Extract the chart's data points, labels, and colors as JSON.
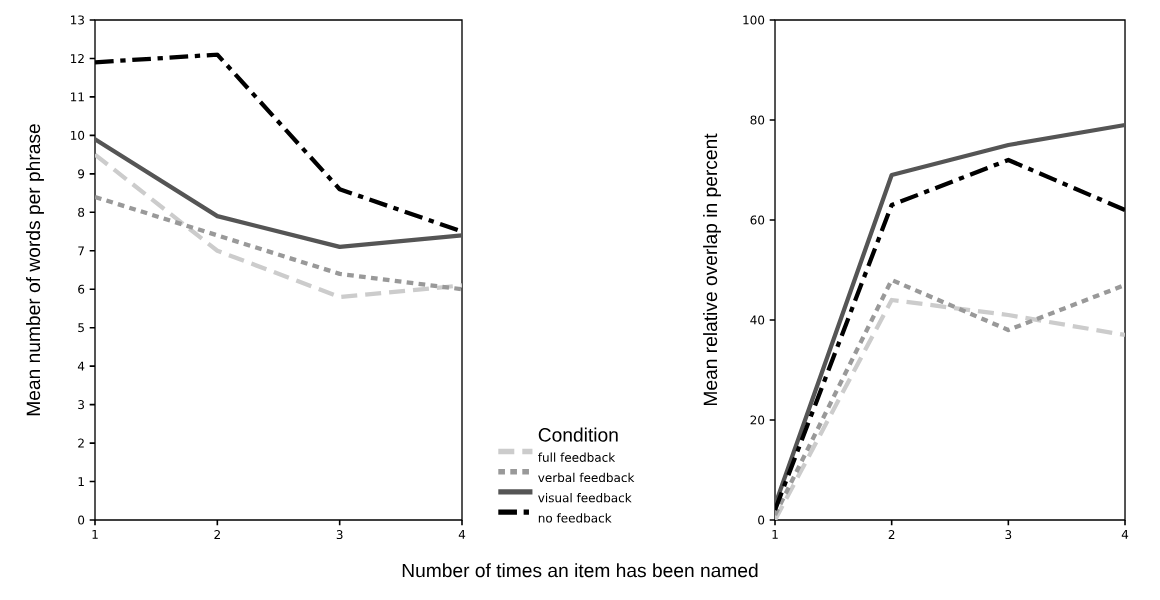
{
  "chart_data": [
    {
      "type": "line",
      "xlabel": "Number of times an item has been named",
      "ylabel": "Mean number of words per phrase",
      "legend_title": "Condition",
      "legend": "right",
      "grid": false,
      "x": [
        1,
        2,
        3,
        4
      ],
      "xlim": [
        1,
        4
      ],
      "xticks": [
        1,
        2,
        3,
        4
      ],
      "ylim": [
        0,
        13
      ],
      "yticks": [
        0,
        1,
        2,
        3,
        4,
        5,
        6,
        7,
        8,
        9,
        10,
        11,
        12,
        13
      ],
      "series": [
        {
          "name": "full feedback",
          "color": "#cccccc",
          "line_style": "dashed",
          "values": [
            9.5,
            7.0,
            5.8,
            6.1
          ]
        },
        {
          "name": "verbal feedback",
          "color": "#999999",
          "line_style": "dotted",
          "values": [
            8.4,
            7.4,
            6.4,
            6.0
          ]
        },
        {
          "name": "visual feedback",
          "color": "#555555",
          "line_style": "solid",
          "values": [
            9.9,
            7.9,
            7.1,
            7.4
          ]
        },
        {
          "name": "no feedback",
          "color": "#000000",
          "line_style": "dashdot",
          "values": [
            11.9,
            12.1,
            8.6,
            7.5
          ]
        }
      ]
    },
    {
      "type": "line",
      "ylabel": "Mean relative overlap in percent",
      "grid": false,
      "x": [
        1,
        2,
        3,
        4
      ],
      "xlim": [
        1,
        4
      ],
      "xticks": [
        1,
        2,
        3,
        4
      ],
      "ylim": [
        0,
        100
      ],
      "yticks": [
        0,
        20,
        40,
        60,
        80,
        100
      ],
      "series": [
        {
          "color": "#cccccc",
          "line_style": "dashed",
          "values": [
            0,
            44,
            41,
            37
          ]
        },
        {
          "color": "#999999",
          "line_style": "dotted",
          "values": [
            1,
            48,
            38,
            47
          ]
        },
        {
          "color": "#555555",
          "line_style": "solid",
          "values": [
            3,
            69,
            75,
            79
          ]
        },
        {
          "color": "#000000",
          "line_style": "dashdot",
          "values": [
            2,
            63,
            72,
            62
          ]
        }
      ]
    }
  ]
}
